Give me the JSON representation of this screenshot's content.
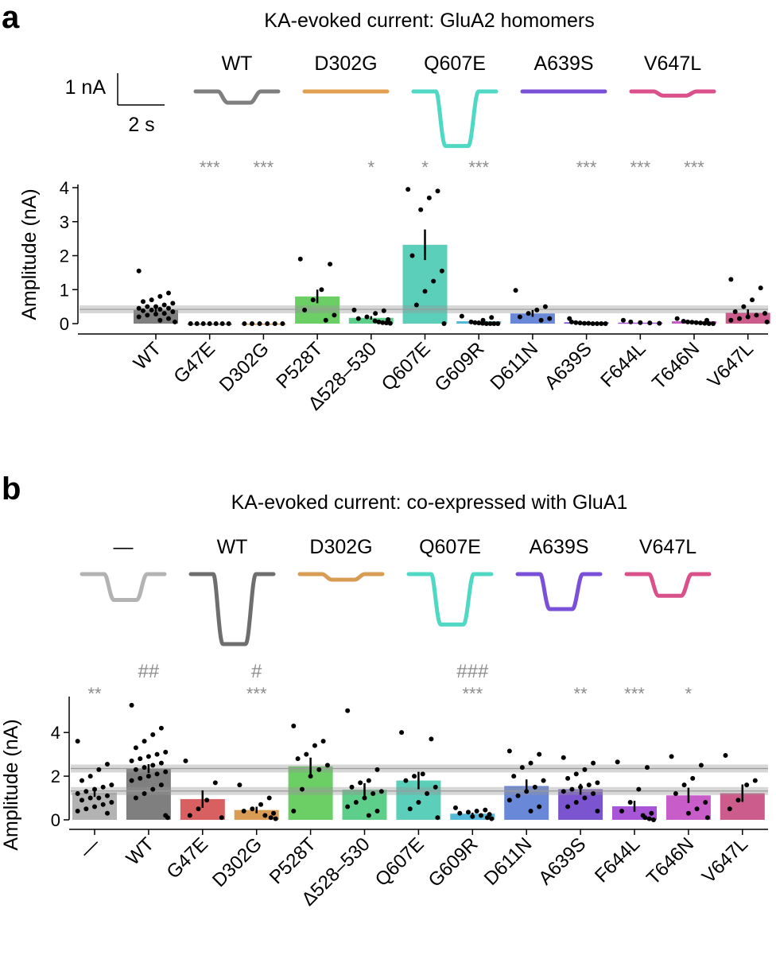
{
  "panel_a": {
    "letter": "a",
    "title": "KA-evoked current: GluA2 homomers",
    "scale_bar": {
      "y": "1 nA",
      "x": "2 s"
    },
    "traces": [
      {
        "label": "WT",
        "color": "#7f7f7f",
        "depth": 0.16
      },
      {
        "label": "D302G",
        "color": "#e0a050",
        "depth": 0.0
      },
      {
        "label": "Q607E",
        "color": "#4fd8c4",
        "depth": 0.78
      },
      {
        "label": "A639S",
        "color": "#7b50d8",
        "depth": 0.0
      },
      {
        "label": "V647L",
        "color": "#d9508a",
        "depth": 0.06
      }
    ]
  },
  "panel_b": {
    "letter": "b",
    "title": "KA-evoked current: co-expressed with GluA1",
    "traces": [
      {
        "label": "—",
        "color": "#b3b3b3",
        "depth": 0.37
      },
      {
        "label": "WT",
        "color": "#6e6e6e",
        "depth": 1.0
      },
      {
        "label": "D302G",
        "color": "#d99c55",
        "depth": 0.08
      },
      {
        "label": "Q607E",
        "color": "#4fd8c4",
        "depth": 0.72
      },
      {
        "label": "A639S",
        "color": "#7b50d8",
        "depth": 0.5
      },
      {
        "label": "V647L",
        "color": "#d9508a",
        "depth": 0.31
      }
    ]
  },
  "chart_data": [
    {
      "type": "bar",
      "title": "KA-evoked current: GluA2 homomers",
      "xlabel": "",
      "ylabel": "Amplitude (nA)",
      "ylim": [
        0,
        4
      ],
      "yticks": [
        0,
        1,
        2,
        3,
        4
      ],
      "categories": [
        "WT",
        "G47E",
        "D302G",
        "P528T",
        "Δ528–530",
        "Q607E",
        "G609R",
        "D611N",
        "A639S",
        "F644L",
        "T646N",
        "V647L"
      ],
      "values": [
        0.4,
        0.0,
        0.0,
        0.8,
        0.17,
        2.32,
        0.07,
        0.3,
        0.04,
        0.03,
        0.07,
        0.32
      ],
      "errors": [
        0.05,
        0,
        0,
        0.2,
        0.05,
        0.45,
        0.02,
        0.1,
        0.01,
        0.01,
        0.01,
        0.1
      ],
      "colors": [
        "#7f7f7f",
        "#808080",
        "#d99c55",
        "#6ccf66",
        "#5dcf8a",
        "#5bcfba",
        "#52b9d8",
        "#6a88d8",
        "#7b55cf",
        "#a855d8",
        "#c85cc8",
        "#cc5c8c"
      ],
      "significance": [
        "",
        "***",
        "***",
        "",
        "*",
        "*",
        "***",
        "",
        "***",
        "***",
        "***",
        ""
      ],
      "reference_line": 0.42,
      "points": [
        [
          1.55,
          0.9,
          0.8,
          0.7,
          0.65,
          0.6,
          0.55,
          0.5,
          0.5,
          0.45,
          0.45,
          0.42,
          0.4,
          0.38,
          0.35,
          0.3,
          0.28,
          0.25,
          0.2,
          0.15,
          0.1,
          0.05
        ],
        [
          0,
          0,
          0,
          0,
          0,
          0,
          0
        ],
        [
          0,
          0,
          0,
          0,
          0,
          0
        ],
        [
          1.9,
          1.75,
          1.0,
          0.7,
          0.4,
          0.25,
          0.1
        ],
        [
          0.4,
          0.38,
          0.3,
          0.2,
          0.15,
          0.12,
          0.08,
          0.05,
          0.03,
          0.02,
          0.01
        ],
        [
          3.95,
          3.9,
          3.7,
          3.35,
          2.0,
          1.55,
          1.25,
          0.95,
          0.55,
          0.0
        ],
        [
          0.22,
          0.18,
          0.1,
          0.05,
          0.03,
          0.02,
          0.01,
          0.0,
          0.0,
          0.0,
          0.0
        ],
        [
          0.98,
          0.5,
          0.4,
          0.3,
          0.2,
          0.15,
          0.1
        ],
        [
          0.15,
          0.05,
          0.03,
          0.02,
          0.01,
          0.01,
          0.0,
          0.0,
          0.0,
          0.0
        ],
        [
          0.1,
          0.05,
          0.03,
          0.02,
          0.01
        ],
        [
          0.15,
          0.1,
          0.07,
          0.05,
          0.04,
          0.03,
          0.02,
          0.01,
          0.0,
          0.0
        ],
        [
          1.3,
          1.05,
          0.7,
          0.5,
          0.35,
          0.3,
          0.25,
          0.2,
          0.15,
          0.1,
          0.05
        ]
      ]
    },
    {
      "type": "bar",
      "title": "KA-evoked current: co-expressed with GluA1",
      "xlabel": "",
      "ylabel": "Amplitude (nA)",
      "ylim": [
        0,
        5.5
      ],
      "yticks": [
        0,
        2,
        4
      ],
      "categories": [
        "—",
        "WT",
        "G47E",
        "D302G",
        "P528T",
        "Δ528–530",
        "Q607E",
        "G609R",
        "D611N",
        "A639S",
        "F644L",
        "T646N",
        "V647L"
      ],
      "values": [
        1.25,
        2.35,
        0.95,
        0.45,
        2.45,
        1.38,
        1.8,
        0.28,
        1.55,
        1.4,
        0.62,
        1.12,
        1.22
      ],
      "errors": [
        0.2,
        0.2,
        0.4,
        0.15,
        0.4,
        0.3,
        0.4,
        0.05,
        0.3,
        0.25,
        0.25,
        0.35,
        0.4
      ],
      "colors": [
        "#b3b3b3",
        "#7f7f7f",
        "#d96060",
        "#d99c55",
        "#6ccf66",
        "#5dcf8a",
        "#5bcfba",
        "#52b9d8",
        "#6a88d8",
        "#7b55cf",
        "#a855d8",
        "#c85cc8",
        "#cc5c8c"
      ],
      "significance": [
        "**",
        "",
        "",
        "***",
        "",
        "",
        "",
        "***",
        "",
        "**",
        "***",
        "*",
        ""
      ],
      "significance_hash": [
        "",
        "##",
        "",
        "#",
        "",
        "",
        "",
        "###",
        "",
        "",
        "",
        "",
        ""
      ],
      "reference_lines": [
        2.35,
        1.32
      ],
      "points": [
        [
          3.6,
          2.55,
          2.3,
          2.0,
          1.8,
          1.6,
          1.5,
          1.4,
          1.3,
          1.2,
          1.1,
          1.0,
          1.0,
          0.9,
          0.8,
          0.7,
          0.6,
          0.5,
          0.4,
          0.3
        ],
        [
          5.25,
          4.2,
          3.9,
          3.6,
          3.3,
          3.1,
          3.0,
          2.9,
          2.8,
          2.7,
          2.6,
          2.5,
          2.4,
          2.3,
          2.2,
          2.1,
          2.0,
          1.9,
          1.8,
          1.6,
          1.4,
          1.2,
          1.0,
          0.2,
          0.1
        ],
        [
          2.7,
          1.7,
          0.9,
          0.5,
          0.2,
          0.1
        ],
        [
          1.6,
          1.0,
          0.7,
          0.5,
          0.4,
          0.3,
          0.2,
          0.1,
          0.05
        ],
        [
          4.3,
          3.6,
          3.4,
          3.0,
          2.8,
          2.5,
          2.3,
          2.0,
          1.4,
          0.4
        ],
        [
          5.0,
          2.3,
          1.8,
          1.7,
          1.5,
          1.3,
          1.2,
          1.0,
          0.8,
          0.6,
          0.4,
          0.2
        ],
        [
          4.0,
          3.7,
          2.1,
          2.0,
          1.8,
          1.5,
          1.2,
          0.8,
          0.5,
          0.1
        ],
        [
          0.55,
          0.45,
          0.4,
          0.35,
          0.3,
          0.25,
          0.2,
          0.15,
          0.1,
          0.05
        ],
        [
          3.15,
          3.0,
          2.6,
          2.4,
          2.0,
          1.8,
          1.5,
          1.3,
          1.1,
          0.9,
          0.6,
          0.4
        ],
        [
          2.85,
          2.6,
          2.3,
          2.1,
          1.9,
          1.7,
          1.6,
          1.5,
          1.4,
          1.3,
          1.2,
          1.0,
          0.8,
          0.6,
          0.4
        ],
        [
          2.65,
          2.4,
          1.4,
          0.8,
          0.4,
          0.3,
          0.2,
          0.1,
          0.05,
          0.0
        ],
        [
          2.9,
          2.5,
          1.9,
          1.6,
          1.2,
          0.8,
          0.5,
          0.3,
          0.1
        ],
        [
          2.95,
          1.8,
          1.6,
          0.9,
          0.5
        ]
      ]
    }
  ]
}
